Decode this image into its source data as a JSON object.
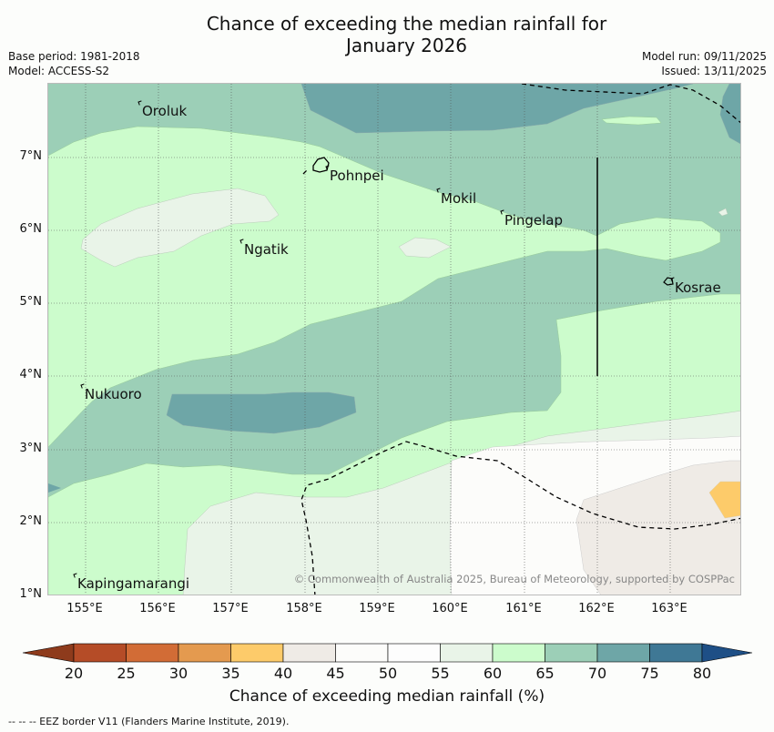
{
  "title": {
    "line1": "Chance of exceeding the median rainfall for",
    "line2": "January 2026"
  },
  "meta": {
    "base_period": "Base period: 1981-2018",
    "model": "Model: ACCESS-S2",
    "model_run": "Model run: 09/11/2025",
    "issued": "Issued: 13/11/2025"
  },
  "map": {
    "lat_labels": [
      "7°N",
      "6°N",
      "5°N",
      "4°N",
      "3°N",
      "2°N",
      "1°N"
    ],
    "lon_labels": [
      "155°E",
      "156°E",
      "157°E",
      "158°E",
      "159°E",
      "160°E",
      "161°E",
      "162°E",
      "163°E"
    ],
    "places": {
      "oroluk": "Oroluk",
      "pohnpei": "Pohnpei",
      "mokil": "Mokil",
      "pingelap": "Pingelap",
      "ngatik": "Ngatik",
      "kosrae": "Kosrae",
      "nukuoro": "Nukuoro",
      "kapingamarangi": "Kapingamarangi"
    },
    "copyright": "© Commonwealth of Australia 2025, Bureau of Meteorology, supported by COSPPac"
  },
  "colorbar": {
    "title": "Chance of exceeding median rainfall (%)",
    "ticks": [
      "20",
      "25",
      "30",
      "35",
      "40",
      "45",
      "50",
      "55",
      "60",
      "65",
      "70",
      "75",
      "80"
    ],
    "colors": {
      "below20": "#8e3b1c",
      "c20_25": "#b54c27",
      "c25_30": "#d26c36",
      "c30_35": "#e49a4f",
      "c35_40": "#fdcb6a",
      "c40_45": "#efebe6",
      "c45_50": "#fcfcfa",
      "c50_55": "#fdfdfd",
      "c55_60": "#e9f4e8",
      "c60_65": "#ccfccc",
      "c65_70": "#9ccfb7",
      "c70_75": "#6ea6a7",
      "c75_80": "#3f7895",
      "above80": "#1e4f86"
    }
  },
  "footnote": "--  --  -- EEZ border V11 (Flanders Marine Institute, 2019)."
}
